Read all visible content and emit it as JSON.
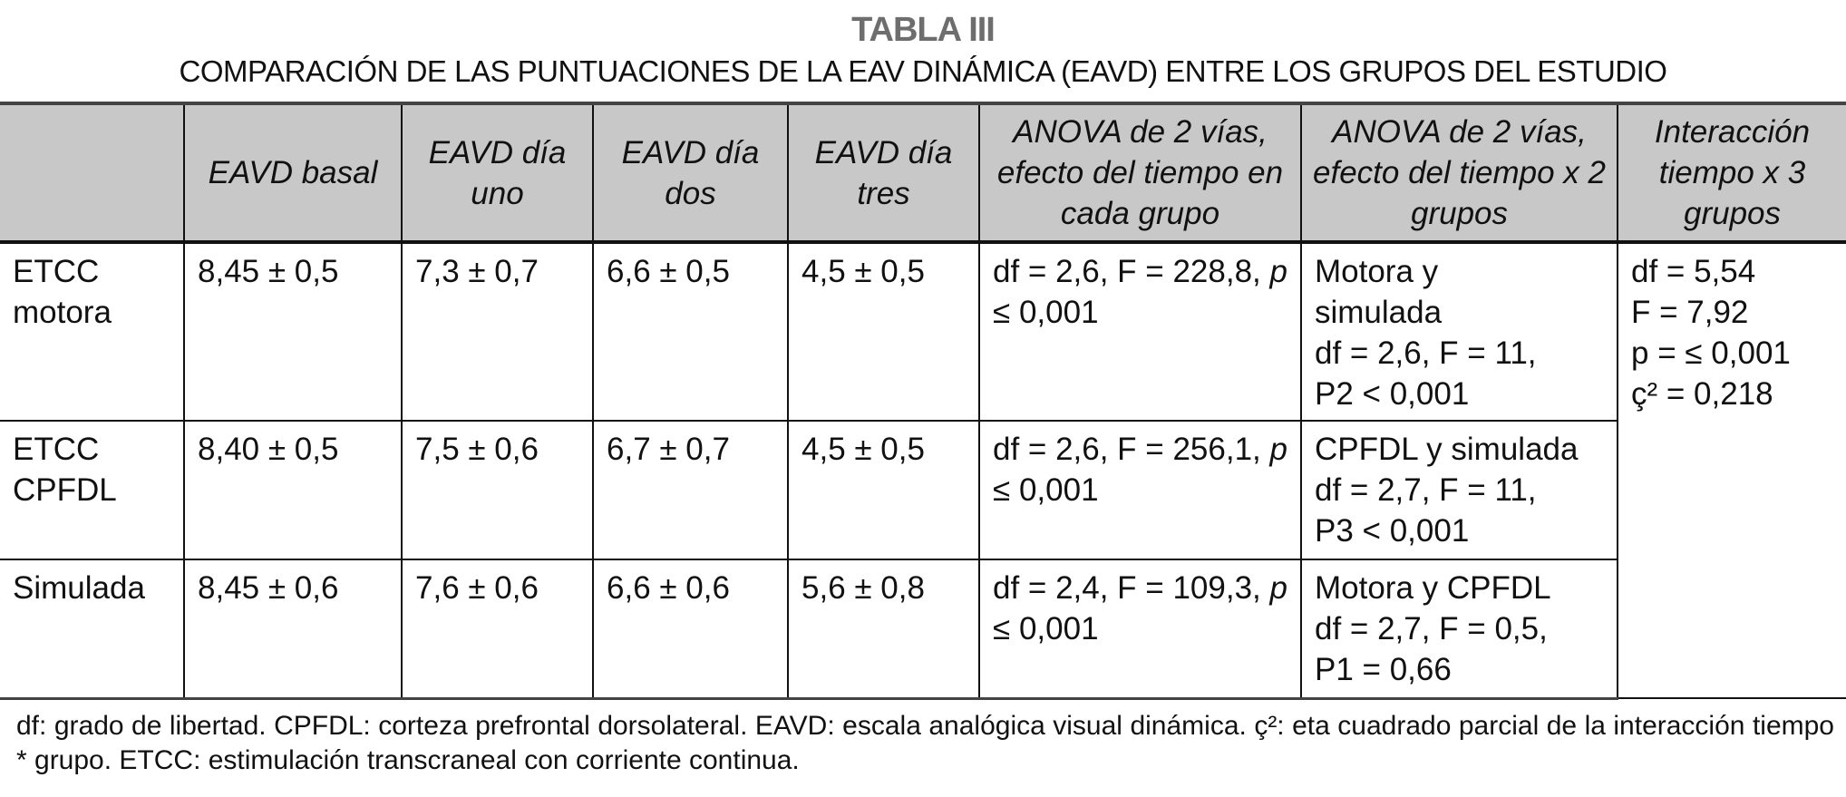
{
  "title": "TABLA III",
  "subtitle": "COMPARACIÓN DE LAS PUNTUACIONES DE LA EAV DINÁMICA (EAVD) ENTRE LOS GRUPOS DEL ESTUDIO",
  "headers": [
    "",
    "EAVD basal",
    "EAVD día uno",
    "EAVD día dos",
    "EAVD día tres",
    "ANOVA de 2 vías, efecto del tiempo en cada grupo",
    "ANOVA de 2 vías, efecto del tiempo x 2 grupos",
    "Interacción tiempo x 3 grupos"
  ],
  "rows": [
    {
      "group": "ETCC motora",
      "basal": "8,45 ± 0,5",
      "dia1": "7,3 ± 0,7",
      "dia2": "6,6 ± 0,5",
      "dia3": "4,5 ± 0,5",
      "anova_a": "df = 2,6, F = 228,8,",
      "anova_b": "0,001",
      "pair": [
        "Motora y",
        "simulada",
        "df = 2,6, F = 11,",
        "P2 < 0,001"
      ]
    },
    {
      "group": "ETCC CPFDL",
      "basal": "8,40 ± 0,5",
      "dia1": "7,5 ± 0,6",
      "dia2": "6,7 ± 0,7",
      "dia3": "4,5 ± 0,5",
      "anova_a": "df = 2,6, F = 256,1,",
      "anova_b": "0,001",
      "pair": [
        "CPFDL y simulada",
        "df = 2,7, F = 11,",
        "P3 < 0,001"
      ]
    },
    {
      "group": "Simulada",
      "basal": "8,45 ± 0,6",
      "dia1": "7,6 ± 0,6",
      "dia2": "6,6 ± 0,6",
      "dia3": "5,6 ± 0,8",
      "anova_a": "df = 2,4, F = 109,3,",
      "anova_b": "0,001",
      "pair": [
        "Motora y CPFDL",
        "df = 2,7, F = 0,5,",
        "P1 = 0,66"
      ]
    }
  ],
  "p_symbol": "p ≤",
  "interaction": [
    "df = 5,54",
    "F = 7,92",
    "p = ≤ 0,001",
    "ç² = 0,218"
  ],
  "footnote": "df: grado de libertad. CPFDL: corteza prefrontal dorsolateral. EAVD: escala analógica visual dinámica. ç²: eta cuadrado parcial de la interacción tiempo * grupo. ETCC: estimulación transcraneal con corriente continua.",
  "colors": {
    "header_bg": "#c8c8c8",
    "title": "#6e6e6e"
  }
}
